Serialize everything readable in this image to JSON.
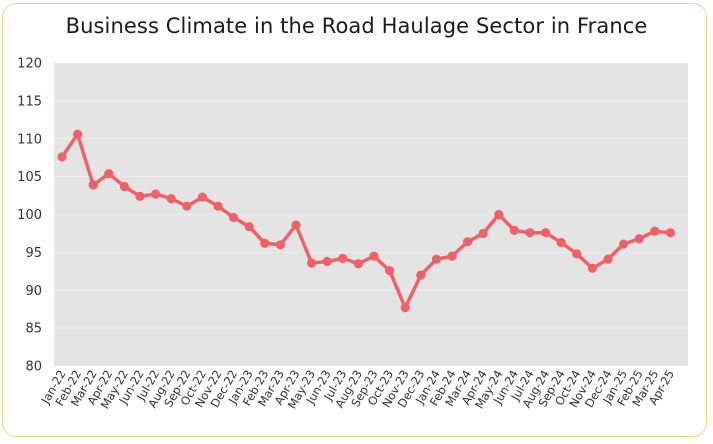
{
  "chart_data": {
    "type": "line",
    "title": "Business Climate in the Road Haulage Sector in France",
    "xlabel": "",
    "ylabel": "",
    "ylim": [
      80,
      120
    ],
    "yticks": [
      80,
      85,
      90,
      95,
      100,
      105,
      110,
      115,
      120
    ],
    "grid": true,
    "legend": "none",
    "colors": {
      "line": "#f06068",
      "plot_background": "#e4e4e4",
      "gridline": "#eeeeee",
      "frame_border": "#efd983"
    },
    "categories": [
      "Jan-22",
      "Feb-22",
      "Mar-22",
      "Apr-22",
      "May-22",
      "Jun-22",
      "Jul-22",
      "Aug-22",
      "Sep-22",
      "Oct-22",
      "Nov-22",
      "Dec-22",
      "Jan-23",
      "Feb-23",
      "Mar-23",
      "Apr-23",
      "May-23",
      "Jun-23",
      "Jul-23",
      "Aug-23",
      "Sep-23",
      "Oct-23",
      "Nov-23",
      "Dec-23",
      "Jan-24",
      "Feb-24",
      "Mar-24",
      "Apr-24",
      "May-24",
      "Jun-24",
      "Jul-24",
      "Aug-24",
      "Sep-24",
      "Oct-24",
      "Nov-24",
      "Dec-24",
      "Jan-25",
      "Feb-25",
      "Mar-25",
      "Apr-25"
    ],
    "series": [
      {
        "values": [
          107.6,
          110.6,
          103.9,
          105.4,
          103.7,
          102.4,
          102.7,
          102.1,
          101.1,
          102.3,
          101.1,
          99.6,
          98.4,
          96.2,
          96.0,
          98.6,
          93.6,
          93.8,
          94.2,
          93.5,
          94.5,
          92.6,
          87.7,
          92.0,
          94.1,
          94.5,
          96.4,
          97.5,
          100.0,
          97.9,
          97.6,
          97.6,
          96.3,
          94.8,
          92.9,
          94.1,
          96.1,
          96.8,
          97.8,
          97.6
        ]
      }
    ]
  }
}
